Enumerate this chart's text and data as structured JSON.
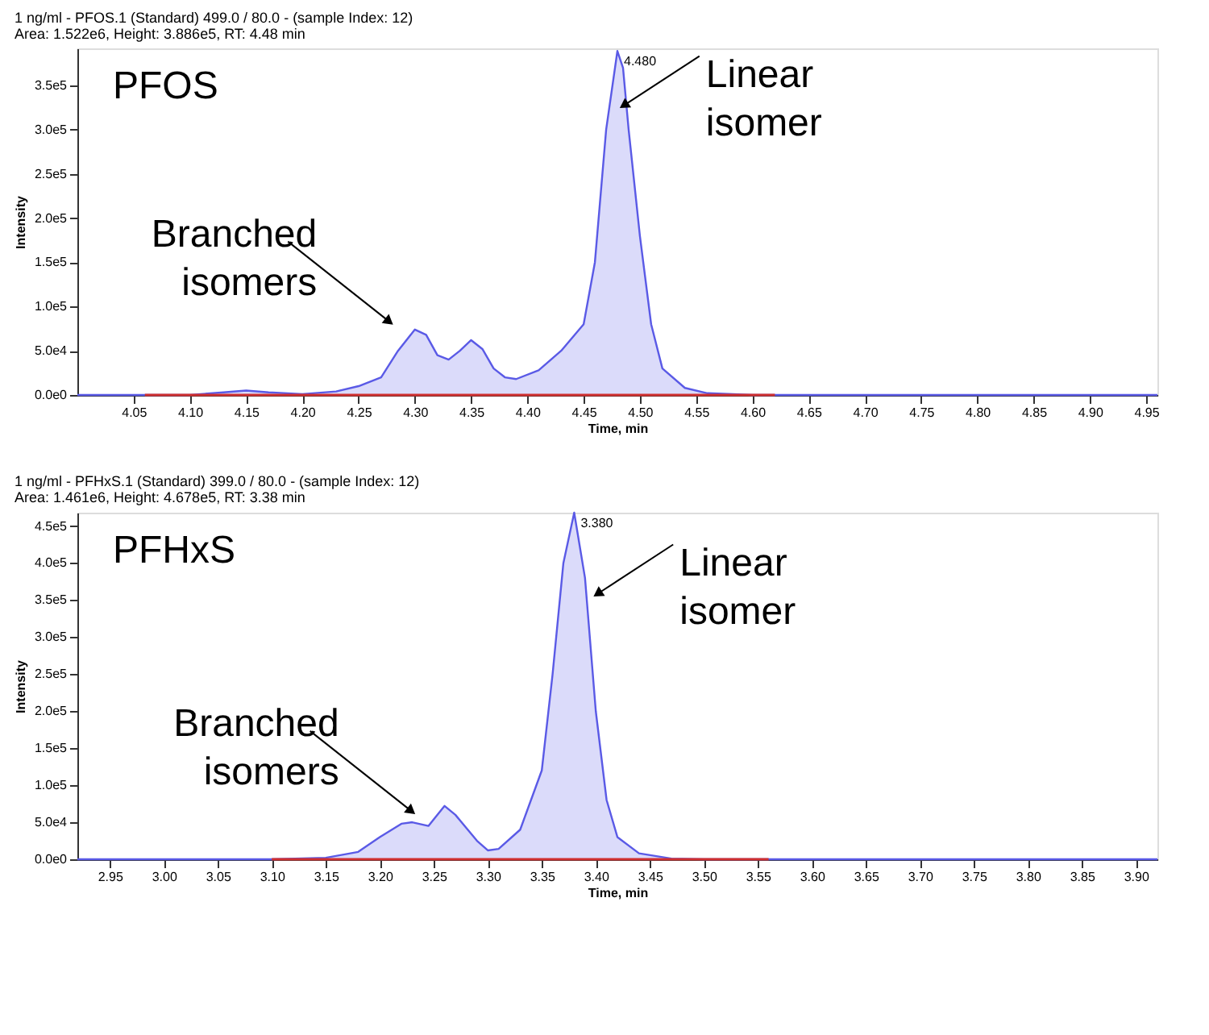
{
  "chart_data": [
    {
      "type": "area",
      "title": "1 ng/ml - PFOS.1 (Standard) 499.0 / 80.0 - (sample Index: 12)",
      "subtitle": "Area: 1.522e6, Height: 3.886e5, RT: 4.48 min",
      "xlabel": "Time, min",
      "ylabel": "Intensity",
      "grid": false,
      "xlim": [
        4.0,
        4.96
      ],
      "ylim": [
        0,
        392000
      ],
      "xticks": [
        {
          "value": 4.05,
          "label": "4.05"
        },
        {
          "value": 4.1,
          "label": "4.10"
        },
        {
          "value": 4.15,
          "label": "4.15"
        },
        {
          "value": 4.2,
          "label": "4.20"
        },
        {
          "value": 4.25,
          "label": "4.25"
        },
        {
          "value": 4.3,
          "label": "4.30"
        },
        {
          "value": 4.35,
          "label": "4.35"
        },
        {
          "value": 4.4,
          "label": "4.40"
        },
        {
          "value": 4.45,
          "label": "4.45"
        },
        {
          "value": 4.5,
          "label": "4.50"
        },
        {
          "value": 4.55,
          "label": "4.55"
        },
        {
          "value": 4.6,
          "label": "4.60"
        },
        {
          "value": 4.65,
          "label": "4.65"
        },
        {
          "value": 4.7,
          "label": "4.70"
        },
        {
          "value": 4.75,
          "label": "4.75"
        },
        {
          "value": 4.8,
          "label": "4.80"
        },
        {
          "value": 4.85,
          "label": "4.85"
        },
        {
          "value": 4.9,
          "label": "4.90"
        },
        {
          "value": 4.95,
          "label": "4.95"
        }
      ],
      "yticks": [
        {
          "value": 0,
          "label": "0.0e0"
        },
        {
          "value": 50000,
          "label": "5.0e4"
        },
        {
          "value": 100000,
          "label": "1.0e5"
        },
        {
          "value": 150000,
          "label": "1.5e5"
        },
        {
          "value": 200000,
          "label": "2.0e5"
        },
        {
          "value": 250000,
          "label": "2.5e5"
        },
        {
          "value": 300000,
          "label": "3.0e5"
        },
        {
          "value": 350000,
          "label": "3.5e5"
        }
      ],
      "series": [
        {
          "color": "#5a5ae6",
          "x": [
            4.0,
            4.1,
            4.13,
            4.15,
            4.17,
            4.2,
            4.23,
            4.25,
            4.27,
            4.285,
            4.3,
            4.31,
            4.32,
            4.33,
            4.34,
            4.35,
            4.36,
            4.37,
            4.38,
            4.39,
            4.41,
            4.43,
            4.45,
            4.46,
            4.47,
            4.48,
            4.485,
            4.49,
            4.5,
            4.51,
            4.52,
            4.54,
            4.56,
            4.6,
            4.96
          ],
          "values": [
            0,
            0,
            3000,
            5000,
            3000,
            1000,
            4000,
            10000,
            20000,
            50000,
            74000,
            68000,
            45000,
            40000,
            50000,
            62000,
            52000,
            30000,
            20000,
            18000,
            28000,
            50000,
            80000,
            150000,
            300000,
            389000,
            370000,
            300000,
            180000,
            80000,
            30000,
            8000,
            2000,
            0,
            0
          ]
        },
        {
          "type": "line",
          "color": "#d03030",
          "x": [
            4.06,
            4.62
          ],
          "values": [
            0,
            0
          ]
        }
      ],
      "annotations": [
        "PFOS",
        {
          "text": "4.480",
          "x": 4.48,
          "y": 389000
        },
        {
          "text": "Linear isomer",
          "x": 4.487,
          "y": 328600
        },
        {
          "text": "Branched isomers",
          "x": 4.276,
          "y": 84200
        }
      ]
    },
    {
      "type": "area",
      "title": "1 ng/ml - PFHxS.1 (Standard) 399.0 / 80.0 - (sample Index: 12)",
      "subtitle": "Area: 1.461e6, Height: 4.678e5, RT: 3.38 min",
      "xlabel": "Time, min",
      "ylabel": "Intensity",
      "grid": false,
      "xlim": [
        2.92,
        3.92
      ],
      "ylim": [
        0,
        468000
      ],
      "xticks": [
        {
          "value": 2.95,
          "label": "2.95"
        },
        {
          "value": 3.0,
          "label": "3.00"
        },
        {
          "value": 3.05,
          "label": "3.05"
        },
        {
          "value": 3.1,
          "label": "3.10"
        },
        {
          "value": 3.15,
          "label": "3.15"
        },
        {
          "value": 3.2,
          "label": "3.20"
        },
        {
          "value": 3.25,
          "label": "3.25"
        },
        {
          "value": 3.3,
          "label": "3.30"
        },
        {
          "value": 3.35,
          "label": "3.35"
        },
        {
          "value": 3.4,
          "label": "3.40"
        },
        {
          "value": 3.45,
          "label": "3.45"
        },
        {
          "value": 3.5,
          "label": "3.50"
        },
        {
          "value": 3.55,
          "label": "3.55"
        },
        {
          "value": 3.6,
          "label": "3.60"
        },
        {
          "value": 3.65,
          "label": "3.65"
        },
        {
          "value": 3.7,
          "label": "3.70"
        },
        {
          "value": 3.75,
          "label": "3.75"
        },
        {
          "value": 3.8,
          "label": "3.80"
        },
        {
          "value": 3.85,
          "label": "3.85"
        },
        {
          "value": 3.9,
          "label": "3.90"
        }
      ],
      "yticks": [
        {
          "value": 0,
          "label": "0.0e0"
        },
        {
          "value": 50000,
          "label": "5.0e4"
        },
        {
          "value": 100000,
          "label": "1.0e5"
        },
        {
          "value": 150000,
          "label": "1.5e5"
        },
        {
          "value": 200000,
          "label": "2.0e5"
        },
        {
          "value": 250000,
          "label": "2.5e5"
        },
        {
          "value": 300000,
          "label": "3.0e5"
        },
        {
          "value": 350000,
          "label": "3.5e5"
        },
        {
          "value": 400000,
          "label": "4.0e5"
        },
        {
          "value": 450000,
          "label": "4.5e5"
        }
      ],
      "series": [
        {
          "color": "#5a5ae6",
          "x": [
            2.92,
            3.1,
            3.15,
            3.18,
            3.2,
            3.22,
            3.23,
            3.245,
            3.26,
            3.27,
            3.29,
            3.3,
            3.31,
            3.33,
            3.35,
            3.36,
            3.37,
            3.38,
            3.39,
            3.4,
            3.41,
            3.42,
            3.44,
            3.47,
            3.5,
            3.92
          ],
          "values": [
            0,
            0,
            2000,
            10000,
            30000,
            48000,
            50000,
            45000,
            72000,
            60000,
            25000,
            12000,
            14000,
            40000,
            120000,
            250000,
            400000,
            468000,
            380000,
            200000,
            80000,
            30000,
            8000,
            1000,
            0,
            0
          ]
        },
        {
          "type": "line",
          "color": "#d03030",
          "x": [
            3.1,
            3.56
          ],
          "values": [
            0,
            0
          ]
        }
      ],
      "annotations": [
        "PFHxS",
        {
          "text": "3.380",
          "x": 3.38,
          "y": 468000
        },
        {
          "text": "Linear isomer",
          "x": 3.403,
          "y": 359700
        },
        {
          "text": "Branched isomers",
          "x": 3.228,
          "y": 66500
        }
      ]
    }
  ]
}
